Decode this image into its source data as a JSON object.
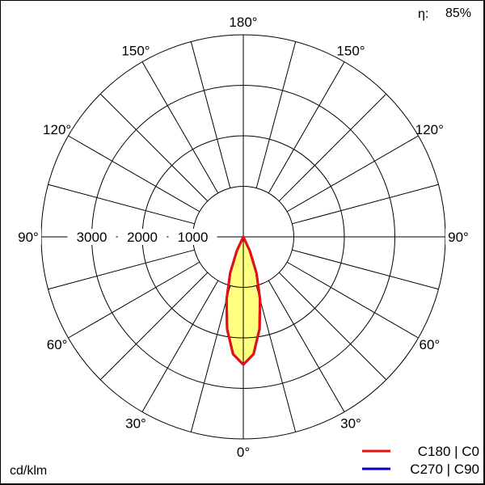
{
  "chart_data": {
    "type": "polar",
    "unit_label": "cd/klm",
    "efficiency_label": "η:",
    "efficiency_value": "85%",
    "radial_ticks": [
      1000,
      2000,
      3000
    ],
    "radial_tick_labels": [
      "1000",
      "2000",
      "3000"
    ],
    "radial_max": 4000,
    "angle_labels": [
      "0°",
      "30°",
      "60°",
      "90°",
      "120°",
      "150°",
      "180°"
    ],
    "angle_values": [
      0,
      30,
      60,
      90,
      120,
      150,
      180
    ],
    "series": [
      {
        "name": "C180 | C0",
        "color": "#e81010",
        "gamma": [
          0,
          5,
          10,
          15,
          20,
          25,
          30
        ],
        "values": [
          2530,
          2330,
          1850,
          1280,
          760,
          300,
          0
        ]
      },
      {
        "name": "C270 | C90",
        "color": "#0000cc",
        "gamma": [
          0,
          5,
          10,
          15,
          20,
          25,
          30
        ],
        "values": [
          2530,
          2330,
          1850,
          1280,
          760,
          300,
          0
        ]
      }
    ],
    "fill_color": "#ffff80",
    "grid": true
  }
}
